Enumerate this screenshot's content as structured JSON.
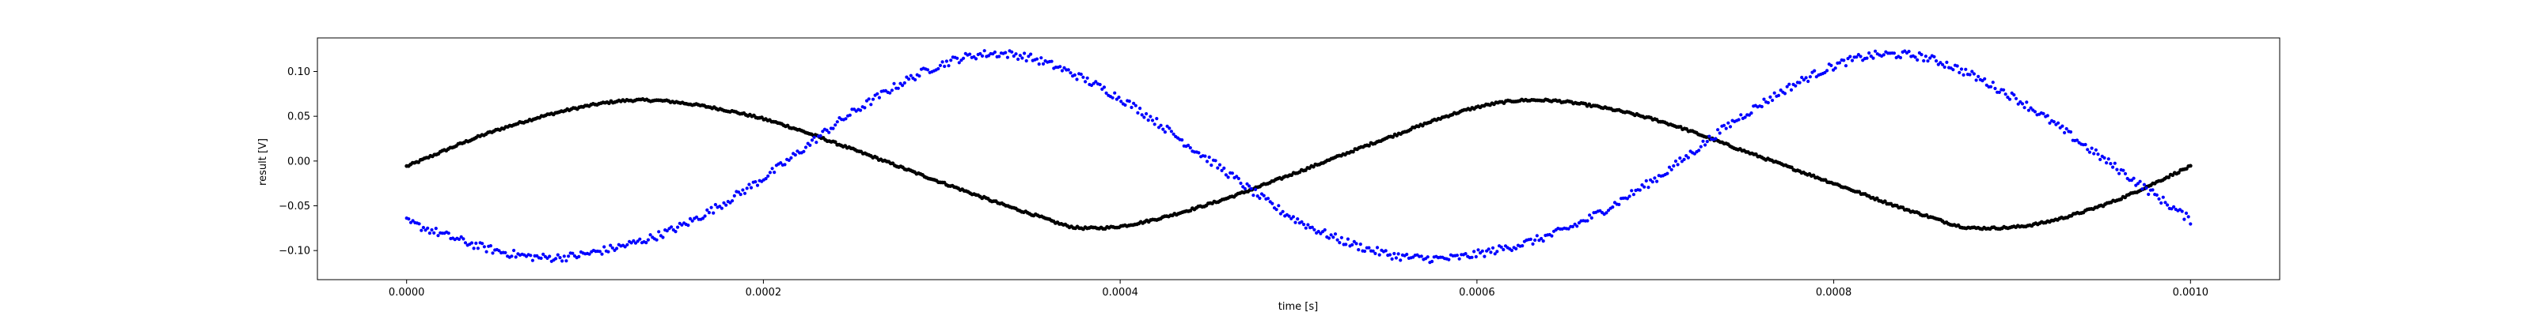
{
  "chart_data": {
    "type": "scatter",
    "title": "",
    "xlabel": "time [s]",
    "ylabel": "result [V]",
    "xlim": [
      -5e-05,
      0.00105
    ],
    "ylim": [
      -0.1325,
      0.1375
    ],
    "xticks": [
      0.0,
      0.0002,
      0.0004,
      0.0006,
      0.0008,
      0.001
    ],
    "xtick_labels": [
      "0.0000",
      "0.0002",
      "0.0004",
      "0.0006",
      "0.0008",
      "0.0010"
    ],
    "yticks": [
      -0.1,
      -0.05,
      0.0,
      0.05,
      0.1
    ],
    "ytick_labels": [
      "−0.10",
      "−0.05",
      "0.00",
      "0.05",
      "0.10"
    ],
    "grid": false,
    "legend": false,
    "series": [
      {
        "color": "#000000",
        "marker": "dot",
        "x": [
          0.0,
          5e-05,
          0.0001,
          0.00013,
          0.00015,
          0.0002,
          0.00025,
          0.0003,
          0.00035,
          0.00038,
          0.0004,
          0.00045,
          0.0005,
          0.00055,
          0.0006,
          0.00063,
          0.00065,
          0.0007,
          0.00075,
          0.0008,
          0.00085,
          0.00088,
          0.0009,
          0.00095,
          0.001
        ],
        "y": [
          -0.006,
          0.034,
          0.061,
          0.068,
          0.066,
          0.047,
          0.013,
          -0.024,
          -0.059,
          -0.075,
          -0.073,
          -0.048,
          -0.012,
          0.026,
          0.06,
          0.068,
          0.066,
          0.046,
          0.011,
          -0.025,
          -0.06,
          -0.075,
          -0.074,
          -0.05,
          -0.006
        ]
      },
      {
        "color": "#0000ff",
        "marker": "dot",
        "x": [
          0.0,
          5e-05,
          8e-05,
          0.0001,
          0.00015,
          0.0002,
          0.00025,
          0.0003,
          0.00033,
          0.00035,
          0.0004,
          0.00045,
          0.0005,
          0.00055,
          0.00058,
          0.0006,
          0.00065,
          0.0007,
          0.00075,
          0.0008,
          0.00083,
          0.00085,
          0.0009,
          0.00095,
          0.001
        ],
        "y": [
          -0.068,
          -0.1,
          -0.108,
          -0.104,
          -0.076,
          -0.019,
          0.054,
          0.108,
          0.12,
          0.115,
          0.07,
          0.001,
          -0.067,
          -0.104,
          -0.109,
          -0.104,
          -0.076,
          -0.02,
          0.052,
          0.106,
          0.119,
          0.116,
          0.072,
          0.004,
          -0.066
        ]
      }
    ]
  }
}
